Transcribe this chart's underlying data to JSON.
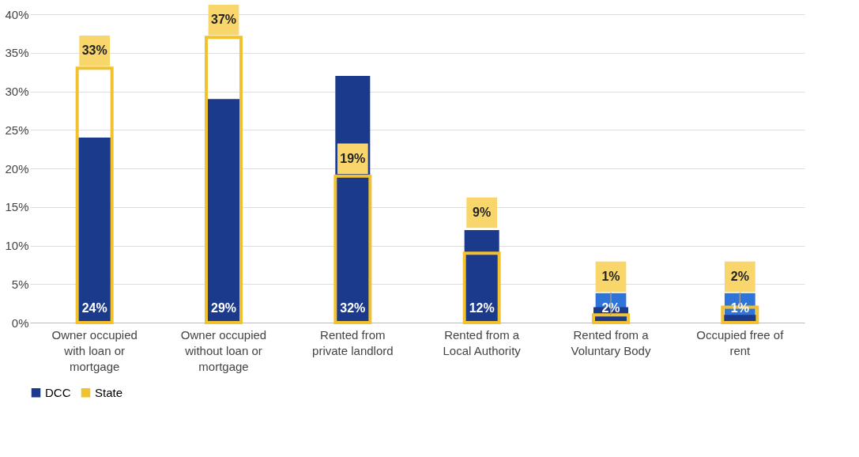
{
  "chart_data": {
    "type": "bar",
    "categories": [
      "Owner occupied with loan or mortgage",
      "Owner occupied without loan or mortgage",
      "Rented from private landlord",
      "Rented from a Local Authority",
      "Rented from a Voluntary Body",
      "Occupied free of rent"
    ],
    "series": [
      {
        "name": "DCC",
        "color": "#1b3a8c",
        "values": [
          24,
          29,
          32,
          12,
          2,
          1
        ],
        "value_labels": [
          "24%",
          "29%",
          "32%",
          "12%",
          "2%",
          "1%"
        ]
      },
      {
        "name": "State",
        "color": "#f2c12e",
        "values": [
          33,
          37,
          19,
          9,
          1,
          2
        ],
        "value_labels": [
          "33%",
          "37%",
          "19%",
          "9%",
          "1%",
          "2%"
        ]
      }
    ],
    "ylim": [
      0,
      40
    ],
    "yticks": [
      {
        "value": 0,
        "label": "0%"
      },
      {
        "value": 5,
        "label": "5%"
      },
      {
        "value": 10,
        "label": "10%"
      },
      {
        "value": 15,
        "label": "15%"
      },
      {
        "value": 20,
        "label": "20%"
      },
      {
        "value": 25,
        "label": "25%"
      },
      {
        "value": 30,
        "label": "30%"
      },
      {
        "value": 35,
        "label": "35%"
      },
      {
        "value": 40,
        "label": "40%"
      }
    ],
    "grid": "y",
    "legend": "bottom"
  }
}
